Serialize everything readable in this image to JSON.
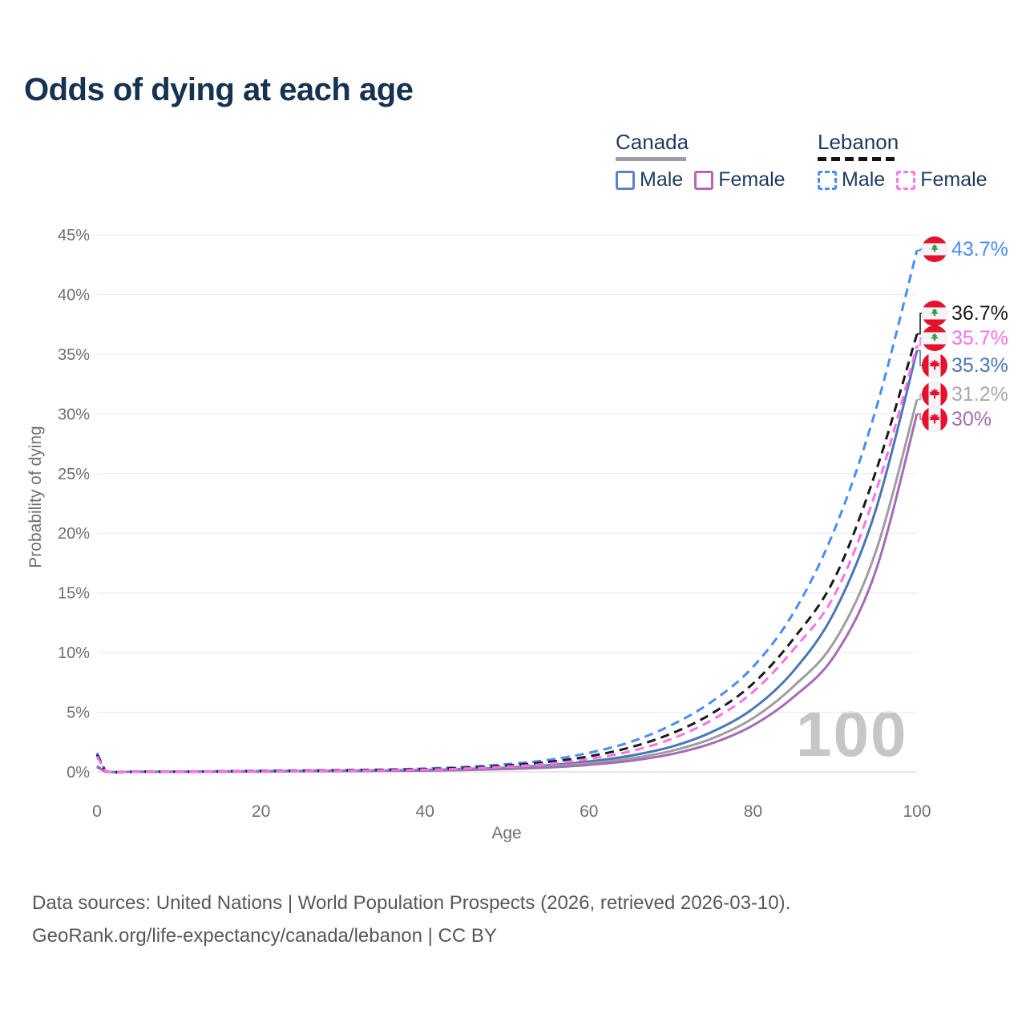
{
  "title": "Odds of dying at each age",
  "watermark": "100",
  "legend": {
    "canada": {
      "title": "Canada",
      "male": "Male",
      "female": "Female",
      "line_style": "solid",
      "male_color": "#4a77b4",
      "female_color": "#b468b4",
      "combined_color": "#9e9ea2"
    },
    "lebanon": {
      "title": "Lebanon",
      "male": "Male",
      "female": "Female",
      "line_style": "dashed",
      "male_color": "#4a8cf7",
      "female_color": "#ff70e8",
      "combined_color": "#1a1a1a"
    }
  },
  "chart_data": {
    "type": "line",
    "title": "Odds of dying at each age",
    "xlabel": "Age",
    "ylabel": "Probability of dying",
    "xlim": [
      0,
      100
    ],
    "ylim": [
      0,
      45
    ],
    "xticks": [
      0,
      20,
      40,
      60,
      80,
      100
    ],
    "yticks": [
      0,
      5,
      10,
      15,
      20,
      25,
      30,
      35,
      40,
      45
    ],
    "ytick_suffix": "%",
    "grid": "horizontal",
    "legend_position": "top-right",
    "x_ages": [
      0,
      1,
      5,
      10,
      15,
      20,
      25,
      30,
      35,
      40,
      45,
      50,
      55,
      60,
      65,
      70,
      75,
      80,
      85,
      90,
      95,
      100
    ],
    "series": [
      {
        "name": "Canada Male",
        "country": "Canada",
        "sex": "Male",
        "style": "solid",
        "color": "#4a77b4",
        "end_value_pct": 35.3,
        "values": [
          0.5,
          0.03,
          0.01,
          0.012,
          0.04,
          0.07,
          0.09,
          0.11,
          0.13,
          0.17,
          0.24,
          0.36,
          0.56,
          0.87,
          1.35,
          2.1,
          3.35,
          5.3,
          8.5,
          13.5,
          22.0,
          35.3
        ]
      },
      {
        "name": "Canada Both sexes",
        "country": "Canada",
        "sex": "Both",
        "style": "solid",
        "color": "#9e9ea2",
        "end_value_pct": 31.2,
        "values": [
          0.45,
          0.028,
          0.009,
          0.01,
          0.03,
          0.05,
          0.07,
          0.09,
          0.11,
          0.14,
          0.2,
          0.3,
          0.46,
          0.72,
          1.12,
          1.75,
          2.8,
          4.5,
          7.2,
          11.0,
          18.5,
          31.2
        ]
      },
      {
        "name": "Canada Female",
        "country": "Canada",
        "sex": "Female",
        "style": "solid",
        "color": "#a56db3",
        "end_value_pct": 30.0,
        "values": [
          0.4,
          0.025,
          0.008,
          0.009,
          0.02,
          0.03,
          0.05,
          0.06,
          0.08,
          0.11,
          0.16,
          0.24,
          0.37,
          0.59,
          0.93,
          1.48,
          2.4,
          3.9,
          6.3,
          9.8,
          16.9,
          30.0
        ]
      },
      {
        "name": "Lebanon Male",
        "country": "Lebanon",
        "sex": "Male",
        "style": "dashed",
        "color": "#4a8cf7",
        "end_value_pct": 43.7,
        "values": [
          1.6,
          0.1,
          0.03,
          0.03,
          0.06,
          0.1,
          0.13,
          0.16,
          0.2,
          0.28,
          0.42,
          0.65,
          1.0,
          1.6,
          2.5,
          3.9,
          5.9,
          8.8,
          13.4,
          20.4,
          30.4,
          43.7
        ]
      },
      {
        "name": "Lebanon Both sexes",
        "country": "Lebanon",
        "sex": "Both",
        "style": "dashed",
        "color": "#1a1a1a",
        "end_value_pct": 36.7,
        "values": [
          1.45,
          0.09,
          0.025,
          0.025,
          0.05,
          0.08,
          0.1,
          0.13,
          0.17,
          0.23,
          0.35,
          0.54,
          0.83,
          1.3,
          2.05,
          3.2,
          4.9,
          7.4,
          11.2,
          16.3,
          25.2,
          36.7
        ]
      },
      {
        "name": "Lebanon Female",
        "country": "Lebanon",
        "sex": "Female",
        "style": "dashed",
        "color": "#ff70e8",
        "end_value_pct": 35.7,
        "values": [
          1.3,
          0.08,
          0.02,
          0.02,
          0.04,
          0.06,
          0.08,
          0.1,
          0.13,
          0.18,
          0.28,
          0.44,
          0.68,
          1.08,
          1.72,
          2.75,
          4.35,
          6.7,
          10.3,
          14.9,
          23.5,
          35.7
        ]
      }
    ]
  },
  "annotations": [
    {
      "flag": "lebanon",
      "value": "43.7%",
      "color": "#4a8cf7",
      "series": "Lebanon Male",
      "end_pct": 43.7
    },
    {
      "flag": "lebanon",
      "value": "36.7%",
      "color": "#1a1a1a",
      "series": "Lebanon Both sexes",
      "end_pct": 36.7
    },
    {
      "flag": "lebanon",
      "value": "35.7%",
      "color": "#ff70e8",
      "series": "Lebanon Female",
      "end_pct": 35.7
    },
    {
      "flag": "canada",
      "value": "35.3%",
      "color": "#4a77b4",
      "series": "Canada Male",
      "end_pct": 35.3
    },
    {
      "flag": "canada",
      "value": "31.2%",
      "color": "#a8a8a8",
      "series": "Canada Both sexes",
      "end_pct": 31.2
    },
    {
      "flag": "canada",
      "value": "30%",
      "color": "#a56db3",
      "series": "Canada Female",
      "end_pct": 30.0
    }
  ],
  "footer": {
    "line1": "Data sources: United Nations | World Population Prospects (2026, retrieved 2026-03-10).",
    "line2": "GeoRank.org/life-expectancy/canada/lebanon | CC BY"
  },
  "colors": {
    "title_text": "#16324f",
    "legend_text": "#1e3a5f",
    "axis_text": "#6f6f74",
    "gridline": "#ededf0",
    "zero_line": "#d6d6da",
    "watermark": "#c6c6c6",
    "footer_text": "#58585c"
  }
}
